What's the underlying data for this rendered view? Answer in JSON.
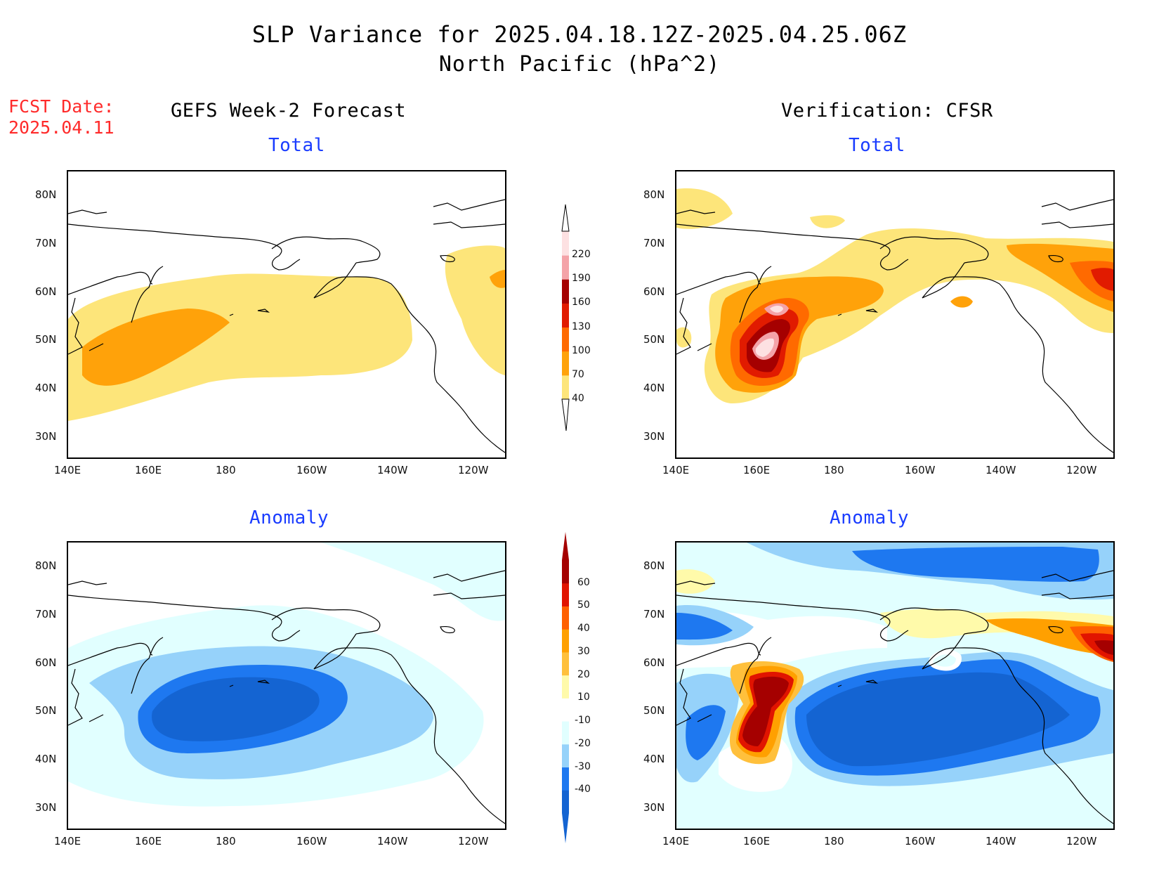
{
  "header": {
    "title_line1": "SLP Variance for 2025.04.18.12Z-2025.04.25.06Z",
    "title_line2": "North Pacific (hPa^2)",
    "fcst_label": "FCST Date:",
    "fcst_date": "2025.04.11"
  },
  "columns": {
    "left": "GEFS Week-2 Forecast",
    "right": "Verification: CFSR"
  },
  "rows": {
    "top": "Total",
    "bottom": "Anomaly"
  },
  "axes": {
    "lon_labels": [
      "140E",
      "160E",
      "180",
      "160W",
      "140W",
      "120W"
    ],
    "lat_labels": [
      "80N",
      "70N",
      "60N",
      "50N",
      "40N",
      "30N"
    ]
  },
  "colorbars": {
    "total": {
      "levels": [
        "40",
        "70",
        "100",
        "130",
        "160",
        "190",
        "220"
      ],
      "colors": [
        "#fde57a",
        "#ffa20a",
        "#ff6a00",
        "#e11b00",
        "#a50000",
        "#f4a3a8",
        "#fde1e2"
      ]
    },
    "anomaly": {
      "levels": [
        "-40",
        "-30",
        "-20",
        "-10",
        "10",
        "20",
        "30",
        "40",
        "50",
        "60"
      ],
      "colors": [
        "#1464d2",
        "#1e78f0",
        "#96d2fa",
        "#e1ffff",
        "#ffffff",
        "#fffaaa",
        "#ffc03c",
        "#ffa000",
        "#ff6000",
        "#e11400",
        "#a50000"
      ]
    }
  }
}
